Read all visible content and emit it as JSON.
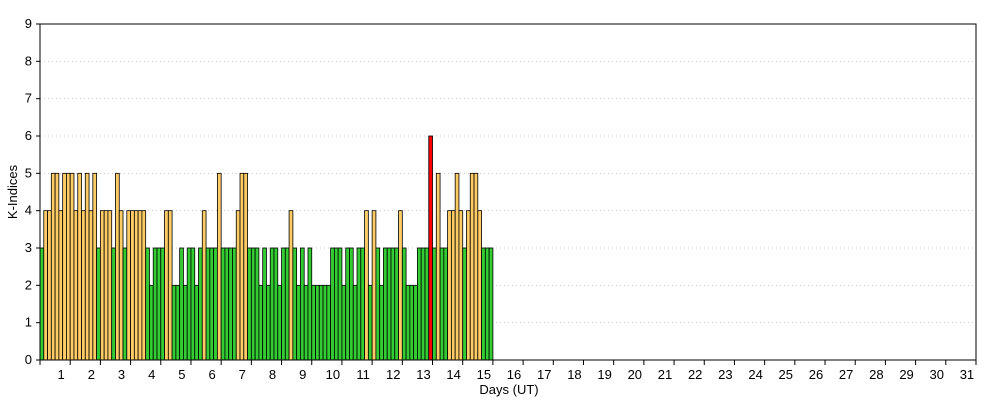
{
  "chart_data": {
    "type": "bar",
    "title": "",
    "xlabel": "Days (UT)",
    "ylabel": "K-Indices",
    "ylim": [
      0,
      9
    ],
    "yticks": [
      "0",
      "1",
      "2",
      "3",
      "4",
      "5",
      "6",
      "7",
      "8",
      "9"
    ],
    "day_labels": [
      "1",
      "2",
      "3",
      "4",
      "5",
      "6",
      "7",
      "8",
      "9",
      "10",
      "11",
      "12",
      "13",
      "14",
      "15",
      "16",
      "17",
      "18",
      "19",
      "20",
      "21",
      "22",
      "23",
      "24",
      "25",
      "26",
      "27",
      "28",
      "29",
      "30",
      "31"
    ],
    "bars_per_day": 8,
    "grid": "horizontal-dotted",
    "color_scale": {
      "low": "#33cc33",
      "medium": "#ffcc66",
      "high": "#ff0000"
    },
    "values": [
      3,
      4,
      4,
      5,
      5,
      4,
      5,
      5,
      5,
      4,
      5,
      4,
      5,
      4,
      5,
      3,
      4,
      4,
      4,
      3,
      5,
      4,
      3,
      4,
      4,
      4,
      4,
      4,
      3,
      2,
      3,
      3,
      3,
      4,
      4,
      2,
      2,
      3,
      2,
      3,
      3,
      2,
      3,
      4,
      3,
      3,
      3,
      5,
      3,
      3,
      3,
      3,
      4,
      5,
      5,
      3,
      3,
      3,
      2,
      3,
      2,
      3,
      3,
      2,
      3,
      3,
      4,
      3,
      2,
      3,
      2,
      3,
      2,
      2,
      2,
      2,
      2,
      3,
      3,
      3,
      2,
      3,
      3,
      2,
      3,
      3,
      4,
      2,
      4,
      3,
      2,
      3,
      3,
      3,
      3,
      4,
      3,
      2,
      2,
      2,
      3,
      3,
      3,
      6,
      3,
      5,
      3,
      3,
      4,
      4,
      5,
      4,
      3,
      4,
      5,
      5,
      4,
      3,
      3,
      3
    ]
  }
}
